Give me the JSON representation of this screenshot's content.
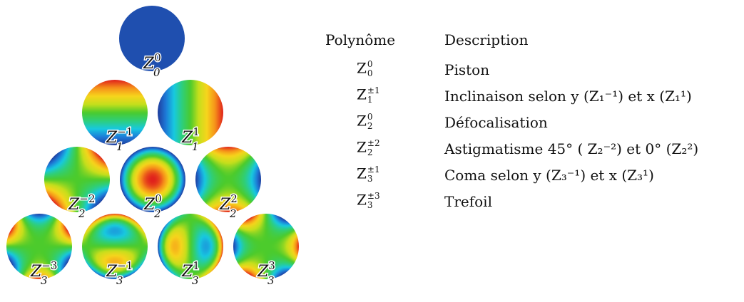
{
  "pyramid": {
    "modes": [
      {
        "id": "Z00",
        "base": "Z",
        "sub": "0",
        "sup": "0"
      },
      {
        "id": "Z1m1",
        "base": "Z",
        "sub": "1",
        "sup": "−1"
      },
      {
        "id": "Z11",
        "base": "Z",
        "sub": "1",
        "sup": "1"
      },
      {
        "id": "Z2m2",
        "base": "Z",
        "sub": "2",
        "sup": "−2"
      },
      {
        "id": "Z20",
        "base": "Z",
        "sub": "2",
        "sup": "0"
      },
      {
        "id": "Z22",
        "base": "Z",
        "sub": "2",
        "sup": "2"
      },
      {
        "id": "Z3m3",
        "base": "Z",
        "sub": "3",
        "sup": "−3"
      },
      {
        "id": "Z3m1",
        "base": "Z",
        "sub": "3",
        "sup": "−1"
      },
      {
        "id": "Z31",
        "base": "Z",
        "sub": "3",
        "sup": "1"
      },
      {
        "id": "Z33",
        "base": "Z",
        "sub": "3",
        "sup": "3"
      }
    ],
    "colormap": [
      "#1f3b9c",
      "#1e7bd8",
      "#18c9e0",
      "#2fcf7a",
      "#4ccb2c",
      "#c6df1c",
      "#f6d51c",
      "#f6921a",
      "#e0201c"
    ]
  },
  "table": {
    "header_poly": "Polynôme",
    "header_desc": "Description",
    "rows": [
      {
        "base": "Z",
        "sub": "0",
        "sup": "0",
        "desc": "Piston"
      },
      {
        "base": "Z",
        "sub": "1",
        "sup": "±1",
        "desc": "Inclinaison selon y (Z₁⁻¹) et x (Z₁¹)"
      },
      {
        "base": "Z",
        "sub": "2",
        "sup": "0",
        "desc": "Défocalisation"
      },
      {
        "base": "Z",
        "sub": "2",
        "sup": "±2",
        "desc": "Astigmatisme 45° ( Z₂⁻²) et 0° (Z₂²)"
      },
      {
        "base": "Z",
        "sub": "3",
        "sup": "±1",
        "desc": "Coma selon y (Z₃⁻¹) et x (Z₃¹)"
      },
      {
        "base": "Z",
        "sub": "3",
        "sup": "±3",
        "desc": "Trefoil"
      }
    ]
  }
}
